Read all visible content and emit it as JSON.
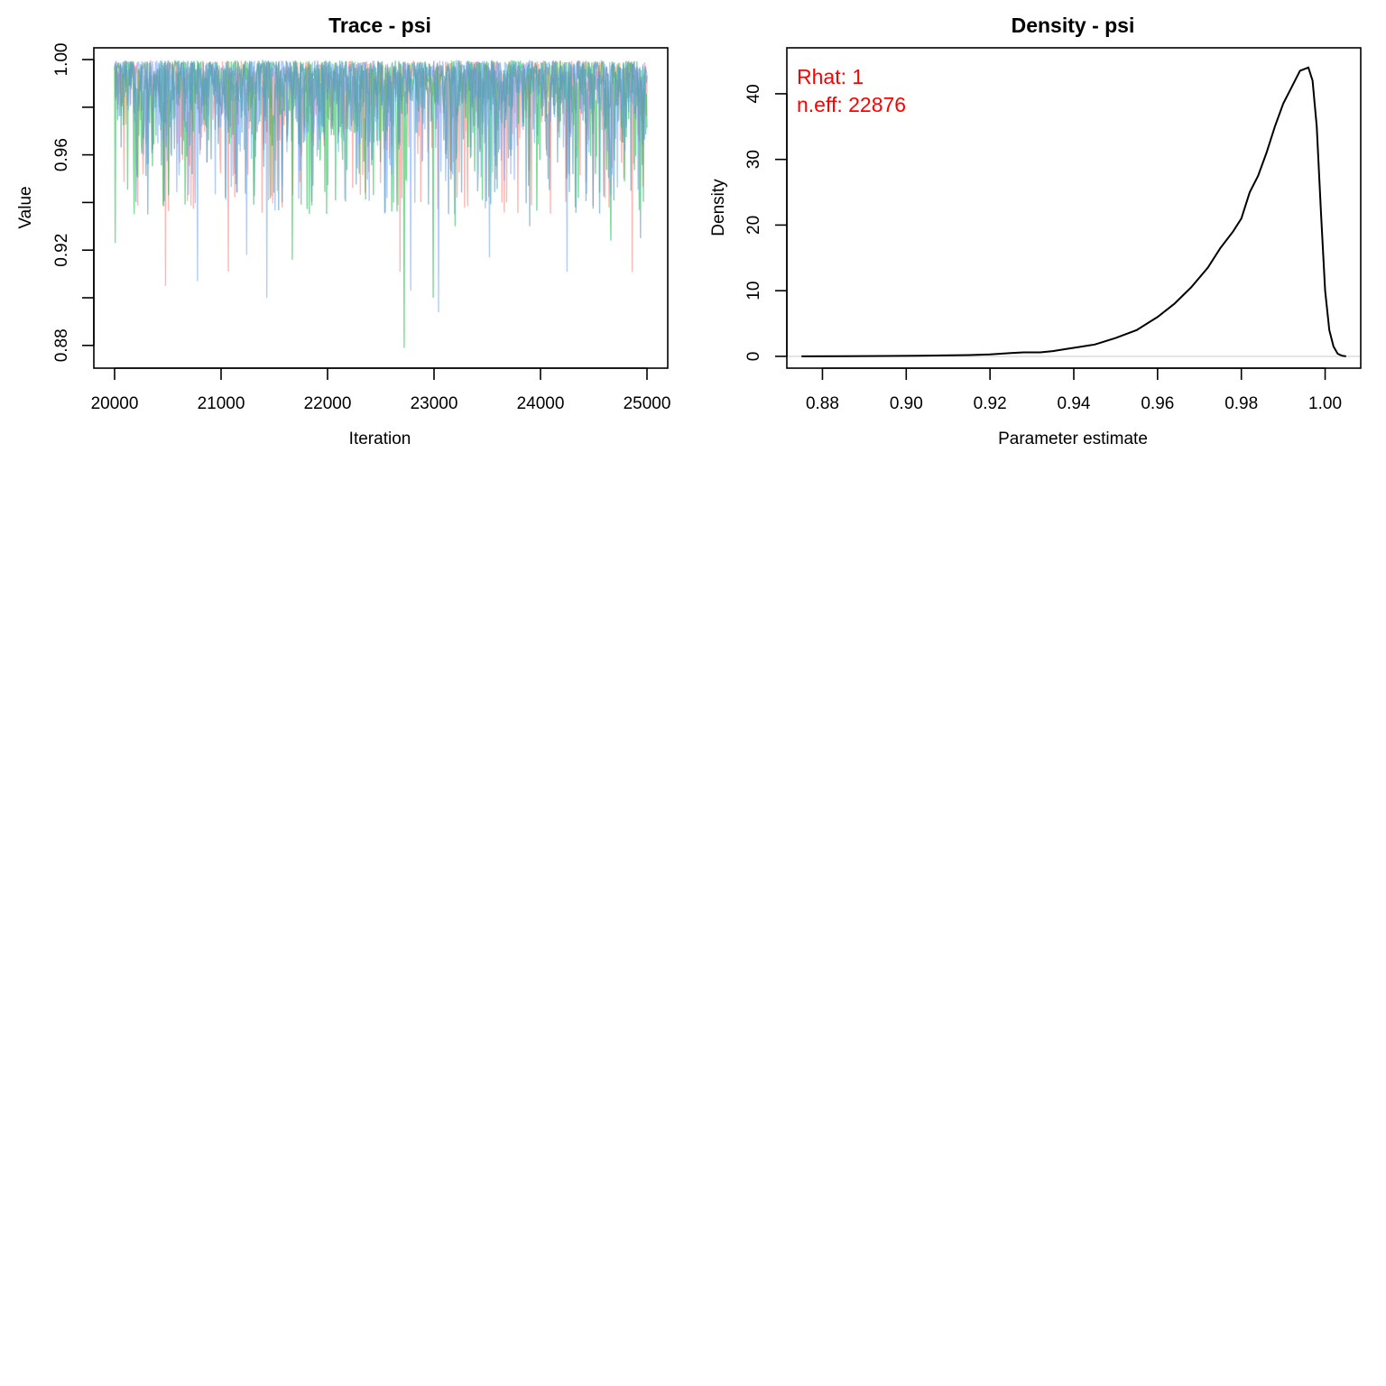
{
  "chart_data": [
    {
      "type": "line",
      "title": "Trace - psi",
      "xlabel": "Iteration",
      "ylabel": "Value",
      "xlim": [
        20000,
        25000
      ],
      "ylim": [
        0.875,
        1.0
      ],
      "x_ticks": [
        20000,
        21000,
        22000,
        23000,
        24000,
        25000
      ],
      "x_tick_labels": [
        "20000",
        "21000",
        "22000",
        "23000",
        "24000",
        "25000"
      ],
      "y_ticks": [
        0.88,
        0.9,
        0.92,
        0.94,
        0.96,
        0.98,
        1.0
      ],
      "y_tick_labels": [
        "0.88",
        "",
        "0.92",
        "",
        "0.96",
        "",
        "1.00"
      ],
      "grid": false,
      "series": [
        {
          "color": "#F8766D",
          "alpha": 0.5,
          "seed": 11,
          "spikes": [
            [
              20480,
              0.905
            ],
            [
              21070,
              0.911
            ],
            [
              22680,
              0.911
            ],
            [
              24860,
              0.911
            ],
            [
              22350,
              0.944
            ],
            [
              23640,
              0.94
            ]
          ]
        },
        {
          "color": "#00BA38",
          "alpha": 0.5,
          "seed": 23,
          "spikes": [
            [
              20005,
              0.923
            ],
            [
              22720,
              0.879
            ],
            [
              22990,
              0.9
            ],
            [
              21670,
              0.916
            ],
            [
              24660,
              0.924
            ],
            [
              23200,
              0.93
            ]
          ]
        },
        {
          "color": "#619CFF",
          "alpha": 0.5,
          "seed": 37,
          "spikes": [
            [
              20780,
              0.907
            ],
            [
              21430,
              0.9
            ],
            [
              22780,
              0.903
            ],
            [
              23040,
              0.894
            ],
            [
              24250,
              0.911
            ],
            [
              21240,
              0.918
            ],
            [
              23520,
              0.917
            ]
          ]
        },
        {
          "color": "#5B9BB8",
          "alpha": 0.6,
          "seed": 53,
          "spikes": [
            [
              20310,
              0.935
            ],
            [
              23900,
              0.93
            ],
            [
              24940,
              0.925
            ]
          ]
        }
      ]
    },
    {
      "type": "line",
      "title": "Density - psi",
      "xlabel": "Parameter estimate",
      "ylabel": "Density",
      "xlim": [
        0.8715,
        1.0085
      ],
      "ylim": [
        -1.8,
        47.0
      ],
      "x_ticks": [
        0.88,
        0.9,
        0.92,
        0.94,
        0.96,
        0.98,
        1.0
      ],
      "x_tick_labels": [
        "0.88",
        "0.90",
        "0.92",
        "0.94",
        "0.96",
        "0.98",
        "1.00"
      ],
      "y_ticks": [
        0,
        10,
        20,
        30,
        40
      ],
      "y_tick_labels": [
        "0",
        "10",
        "20",
        "30",
        "40"
      ],
      "grid": false,
      "baseline": 0,
      "annotations": [
        "Rhat: 1",
        "n.eff: 22876"
      ],
      "annotation_color": "#FF0000",
      "series": [
        {
          "color": "#000000",
          "x": [
            0.875,
            0.885,
            0.895,
            0.905,
            0.915,
            0.92,
            0.925,
            0.928,
            0.932,
            0.935,
            0.938,
            0.941,
            0.945,
            0.95,
            0.955,
            0.96,
            0.964,
            0.968,
            0.972,
            0.975,
            0.978,
            0.98,
            0.982,
            0.984,
            0.986,
            0.988,
            0.99,
            0.992,
            0.994,
            0.996,
            0.997,
            0.998,
            0.999,
            1.0,
            1.001,
            1.002,
            1.003,
            1.004,
            1.005
          ],
          "y": [
            0.0,
            0.02,
            0.05,
            0.1,
            0.2,
            0.3,
            0.5,
            0.6,
            0.6,
            0.8,
            1.1,
            1.4,
            1.8,
            2.8,
            4.0,
            6.0,
            8.0,
            10.5,
            13.5,
            16.5,
            19.0,
            21.0,
            25.0,
            27.5,
            31.0,
            35.0,
            38.5,
            41.0,
            43.5,
            44.0,
            42.0,
            35.0,
            22.0,
            10.0,
            4.0,
            1.5,
            0.4,
            0.1,
            0.0
          ]
        }
      ]
    }
  ]
}
